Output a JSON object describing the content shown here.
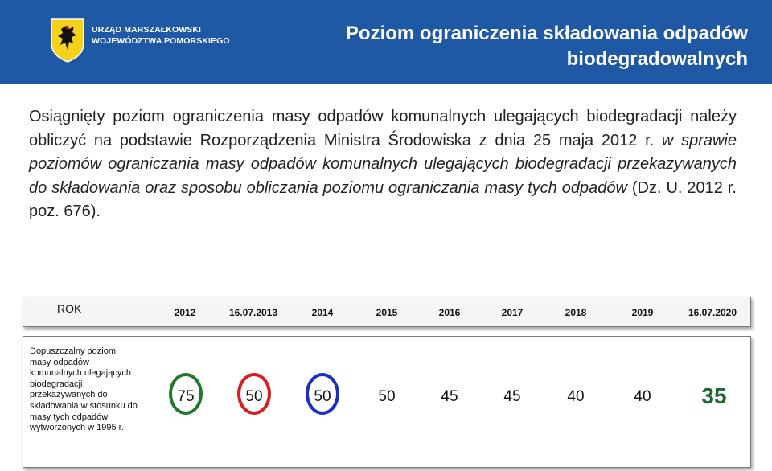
{
  "header": {
    "logo_line1": "URZĄD MARSZAŁKOWSKI",
    "logo_line2": "WOJEWÓDZTWA POMORSKIEGO",
    "title_line1": "Poziom ograniczenia składowania odpadów",
    "title_line2": "biodegradowalnych",
    "background_color": "#1f59a6"
  },
  "body": {
    "text_plain": "Osiągnięty poziom ograniczenia masy odpadów komunalnych ulegających biodegradacji należy obliczyć na podstawie Rozporządzenia Ministra Środowiska z dnia 25 maja 2012 r. ",
    "text_italic": "w sprawie poziomów ograniczania masy odpadów komunalnych ulegających biodegradacji przekazywanych do składowania oraz sposobu obliczania poziomu ograniczania masy tych odpadów",
    "text_tail": " (Dz. U. 2012 r. poz. 676)."
  },
  "table": {
    "header_label": "ROK",
    "years": [
      "2012",
      "16.07.2013",
      "2014",
      "2015",
      "2016",
      "2017",
      "2018",
      "2019",
      "16.07.2020"
    ],
    "row_label": "Dopuszczalny poziom masy odpadów komunalnych ulegających biodegradacji przekazywanych do składowania w stosunku do masy tych odpadów wytworzonych w 1995 r.",
    "values": [
      "75",
      "50",
      "50",
      "50",
      "45",
      "45",
      "40",
      "40",
      "35"
    ],
    "highlight_colors": [
      "#1f7a2e",
      "#d42020",
      "#1a2fc4"
    ],
    "final_value_color": "#1d6b34"
  }
}
